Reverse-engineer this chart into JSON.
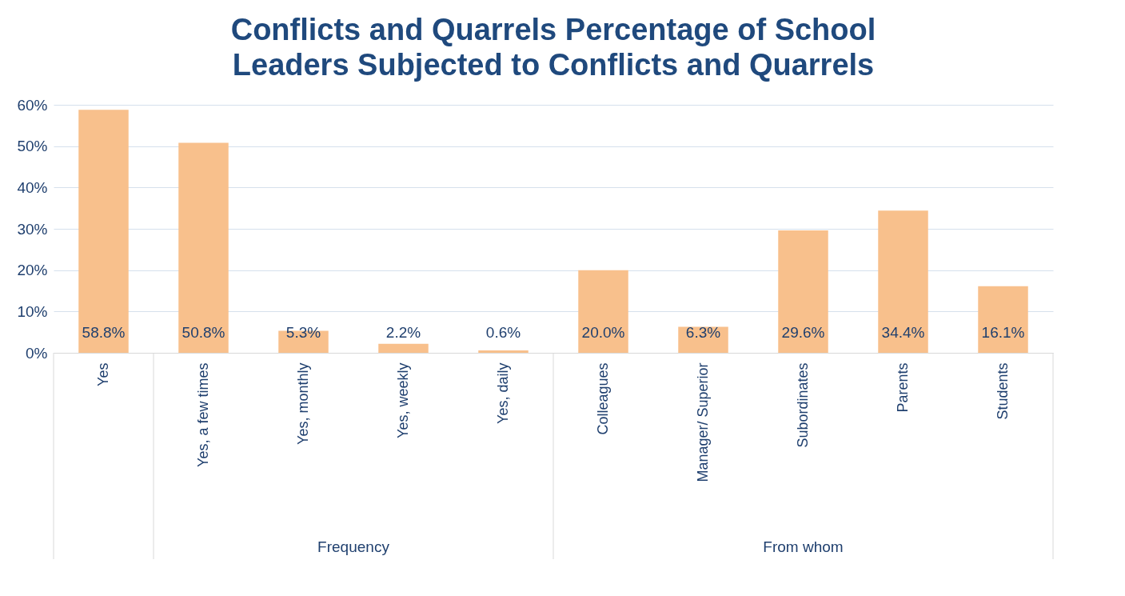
{
  "chart_data": {
    "type": "bar",
    "title": "Conflicts and Quarrels Percentage of School Leaders Subjected to Conflicts and Quarrels",
    "categories": [
      "Yes",
      "Yes, a few times",
      "Yes, monthly",
      "Yes, weekly",
      "Yes, daily",
      "Colleagues",
      "Manager/ Superior",
      "Subordinates",
      "Parents",
      "Students"
    ],
    "values": [
      58.8,
      50.8,
      5.3,
      2.2,
      0.6,
      20.0,
      6.3,
      29.6,
      34.4,
      16.1
    ],
    "value_labels": [
      "58.8%",
      "50.8%",
      "5.3%",
      "2.2%",
      "0.6%",
      "20.0%",
      "6.3%",
      "29.6%",
      "34.4%",
      "16.1%"
    ],
    "color": "#f8c08c",
    "ylim": [
      0,
      60
    ],
    "yticks": [
      {
        "value": 0,
        "label": "0%"
      },
      {
        "value": 10,
        "label": "10%"
      },
      {
        "value": 20,
        "label": "20%"
      },
      {
        "value": 30,
        "label": "30%"
      },
      {
        "value": 40,
        "label": "40%"
      },
      {
        "value": 50,
        "label": "50%"
      },
      {
        "value": 60,
        "label": "60%"
      }
    ],
    "grid": "y",
    "annotations": [
      "Frequency",
      "From whom"
    ]
  }
}
